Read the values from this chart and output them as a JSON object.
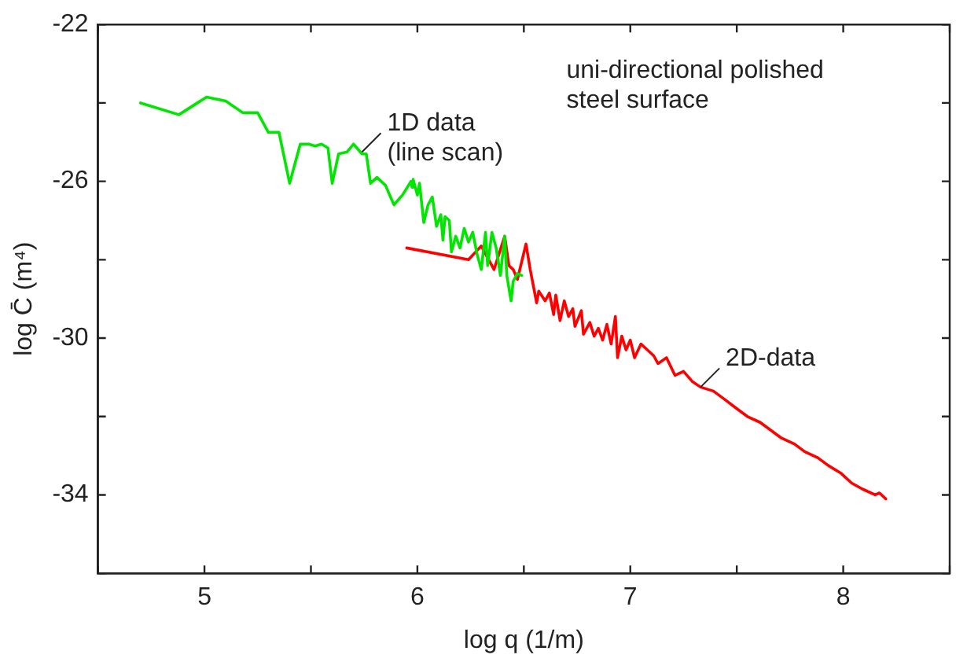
{
  "chart_data": {
    "type": "line",
    "xlabel": "log q (1/m)",
    "ylabel": "log C̄ (m⁴)",
    "xlim": [
      4.5,
      8.5
    ],
    "xticks": [
      {
        "value": 4.5,
        "label": null
      },
      5,
      {
        "value": 5.5,
        "label": null
      },
      6,
      {
        "value": 6.5,
        "label": null
      },
      7,
      {
        "value": 7.5,
        "label": null
      },
      8,
      {
        "value": 8.5,
        "label": null
      }
    ],
    "ylim": [
      -36,
      -22
    ],
    "yticks": [
      {
        "value": -36,
        "label": null
      },
      -34,
      {
        "value": -32,
        "label": null
      },
      -30,
      {
        "value": -28,
        "label": null
      },
      -26,
      {
        "value": -24,
        "label": null
      },
      -22
    ],
    "grid": false,
    "legend": false,
    "marker": "none",
    "line_style": "solid",
    "series": [
      {
        "color": "#00e600",
        "x": [
          4.7,
          4.88,
          5.01,
          5.1,
          5.18,
          5.25,
          5.3,
          5.35,
          5.4,
          5.45,
          5.49,
          5.52,
          5.55,
          5.58,
          5.6,
          5.63,
          5.67,
          5.7,
          5.74,
          5.76,
          5.78,
          5.81,
          5.85,
          5.89,
          5.93,
          5.97,
          5.975,
          5.98,
          6.0,
          6.01,
          6.03,
          6.05,
          6.07,
          6.09,
          6.11,
          6.12,
          6.13,
          6.15,
          6.16,
          6.18,
          6.2,
          6.22,
          6.24,
          6.26,
          6.28,
          6.3,
          6.32,
          6.33,
          6.35,
          6.37,
          6.39,
          6.41,
          6.42,
          6.44,
          6.45,
          6.47,
          6.49
        ],
        "values": [
          -24.0,
          -24.3,
          -23.85,
          -23.95,
          -24.25,
          -24.25,
          -24.75,
          -24.75,
          -26.05,
          -25.05,
          -25.05,
          -25.1,
          -25.05,
          -25.15,
          -26.05,
          -25.3,
          -25.25,
          -25.05,
          -25.3,
          -25.3,
          -26.05,
          -25.9,
          -26.1,
          -26.6,
          -26.35,
          -26.0,
          -26.15,
          -25.95,
          -26.35,
          -26.05,
          -27.05,
          -26.6,
          -26.4,
          -27.15,
          -26.85,
          -27.5,
          -26.9,
          -27.0,
          -27.8,
          -27.4,
          -27.7,
          -27.2,
          -27.55,
          -27.3,
          -27.85,
          -28.25,
          -27.3,
          -28.15,
          -27.3,
          -27.7,
          -28.4,
          -27.4,
          -28.4,
          -29.05,
          -28.55,
          -28.35,
          -28.4
        ]
      },
      {
        "color": "#ff0000",
        "x": [
          5.95,
          6.24,
          6.3,
          6.36,
          6.41,
          6.43,
          6.45,
          6.47,
          6.51,
          6.53,
          6.56,
          6.57,
          6.6,
          6.62,
          6.64,
          6.65,
          6.67,
          6.69,
          6.71,
          6.73,
          6.74,
          6.77,
          6.78,
          6.81,
          6.83,
          6.85,
          6.87,
          6.89,
          6.91,
          6.93,
          6.94,
          6.96,
          6.98,
          7.0,
          7.02,
          7.05,
          7.08,
          7.11,
          7.13,
          7.17,
          7.21,
          7.25,
          7.29,
          7.33,
          7.39,
          7.44,
          7.5,
          7.55,
          7.61,
          7.66,
          7.71,
          7.77,
          7.82,
          7.88,
          7.93,
          7.99,
          8.04,
          8.09,
          8.15,
          8.17,
          8.2
        ],
        "values": [
          -27.7,
          -28.0,
          -27.65,
          -28.25,
          -27.4,
          -28.15,
          -28.25,
          -28.5,
          -27.6,
          -28.25,
          -29.1,
          -28.8,
          -29.05,
          -28.85,
          -29.4,
          -28.9,
          -29.55,
          -29.05,
          -29.45,
          -29.25,
          -29.7,
          -29.3,
          -29.9,
          -29.6,
          -29.95,
          -29.75,
          -30.05,
          -29.65,
          -30.15,
          -29.45,
          -30.5,
          -29.95,
          -30.3,
          -30.05,
          -30.5,
          -30.15,
          -30.3,
          -30.45,
          -30.65,
          -30.5,
          -30.95,
          -30.85,
          -31.1,
          -31.25,
          -31.35,
          -31.55,
          -31.8,
          -32.0,
          -32.15,
          -32.35,
          -32.55,
          -32.7,
          -32.9,
          -33.05,
          -33.25,
          -33.45,
          -33.7,
          -33.85,
          -34.0,
          -33.95,
          -34.1
        ]
      }
    ],
    "annotations": [
      {
        "text": "1D data\n(line scan)",
        "x": 5.74,
        "y": -25.25
      },
      {
        "text": "2D-data",
        "x": 7.33,
        "y": -31.25
      },
      "uni-directional polished\nsteel surface"
    ]
  }
}
